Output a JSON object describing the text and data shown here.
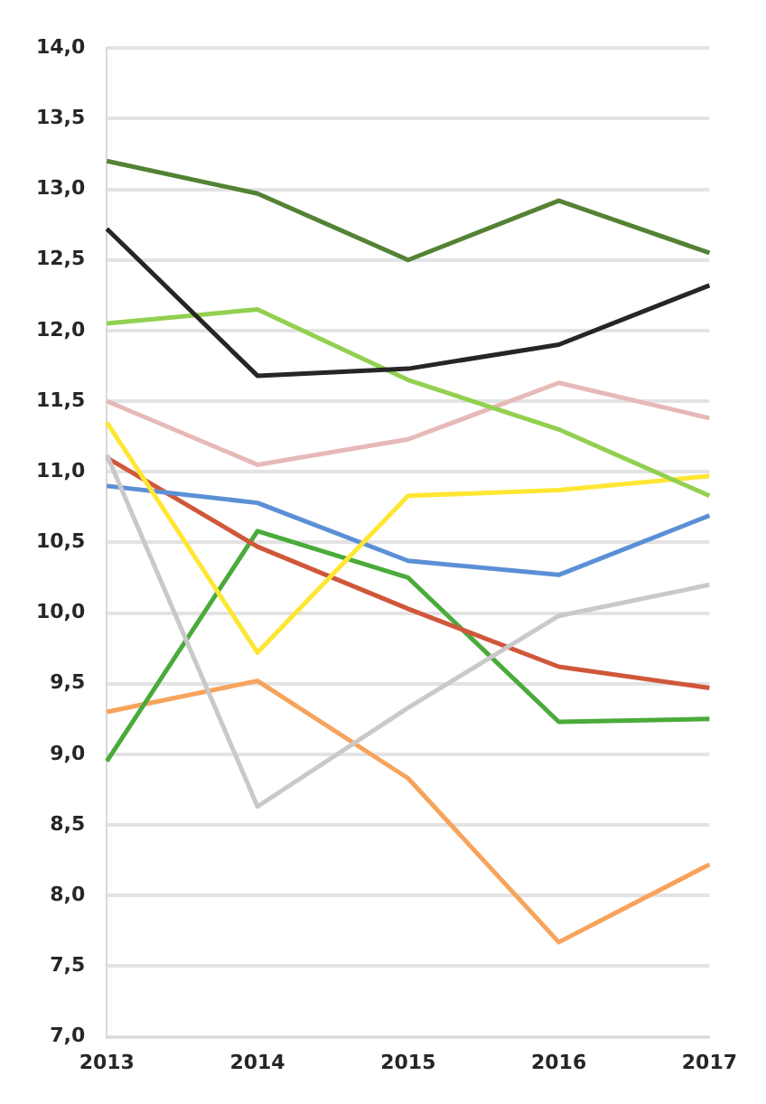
{
  "chart_data": {
    "type": "line",
    "categories": [
      "2013",
      "2014",
      "2015",
      "2016",
      "2017"
    ],
    "series": [
      {
        "color": "#548235",
        "values": [
          13.2,
          12.97,
          12.5,
          12.92,
          12.55
        ]
      },
      {
        "color": "#262626",
        "values": [
          12.72,
          11.68,
          11.73,
          11.9,
          12.32
        ]
      },
      {
        "color": "#92d050",
        "values": [
          12.05,
          12.15,
          11.65,
          11.3,
          10.83
        ]
      },
      {
        "color": "#e6b9b8",
        "values": [
          11.5,
          11.05,
          11.23,
          11.63,
          11.38
        ]
      },
      {
        "color": "#ffe632",
        "values": [
          11.35,
          9.72,
          10.83,
          10.87,
          10.97
        ]
      },
      {
        "color": "#c9c9c9",
        "values": [
          11.12,
          8.63,
          9.33,
          9.98,
          10.2
        ]
      },
      {
        "color": "#5b8fd6",
        "values": [
          10.9,
          10.78,
          10.37,
          10.27,
          10.69
        ]
      },
      {
        "color": "#d0573a",
        "values": [
          11.1,
          10.47,
          10.03,
          9.62,
          9.47
        ]
      },
      {
        "color": "#4aab3a",
        "values": [
          8.95,
          10.58,
          10.25,
          9.23,
          9.25
        ]
      },
      {
        "color": "#f7a35c",
        "values": [
          9.3,
          9.52,
          8.83,
          7.67,
          8.22
        ]
      }
    ],
    "ylim": [
      7,
      14
    ],
    "yticks": [
      {
        "value": 7,
        "label": "7,0"
      },
      {
        "value": 7.5,
        "label": "7,5"
      },
      {
        "value": 8,
        "label": "8,0"
      },
      {
        "value": 8.5,
        "label": "8,5"
      },
      {
        "value": 9,
        "label": "9,0"
      },
      {
        "value": 9.5,
        "label": "9,5"
      },
      {
        "value": 10,
        "label": "10,0"
      },
      {
        "value": 10.5,
        "label": "10,5"
      },
      {
        "value": 11,
        "label": "11,0"
      },
      {
        "value": 11.5,
        "label": "11,5"
      },
      {
        "value": 12,
        "label": "12,0"
      },
      {
        "value": 12.5,
        "label": "12,5"
      },
      {
        "value": 13,
        "label": "13,0"
      },
      {
        "value": 13.5,
        "label": "13,5"
      },
      {
        "value": 14,
        "label": "14,0"
      }
    ],
    "grid": "y",
    "legend": false,
    "marker": "none",
    "line_style": "solid"
  }
}
